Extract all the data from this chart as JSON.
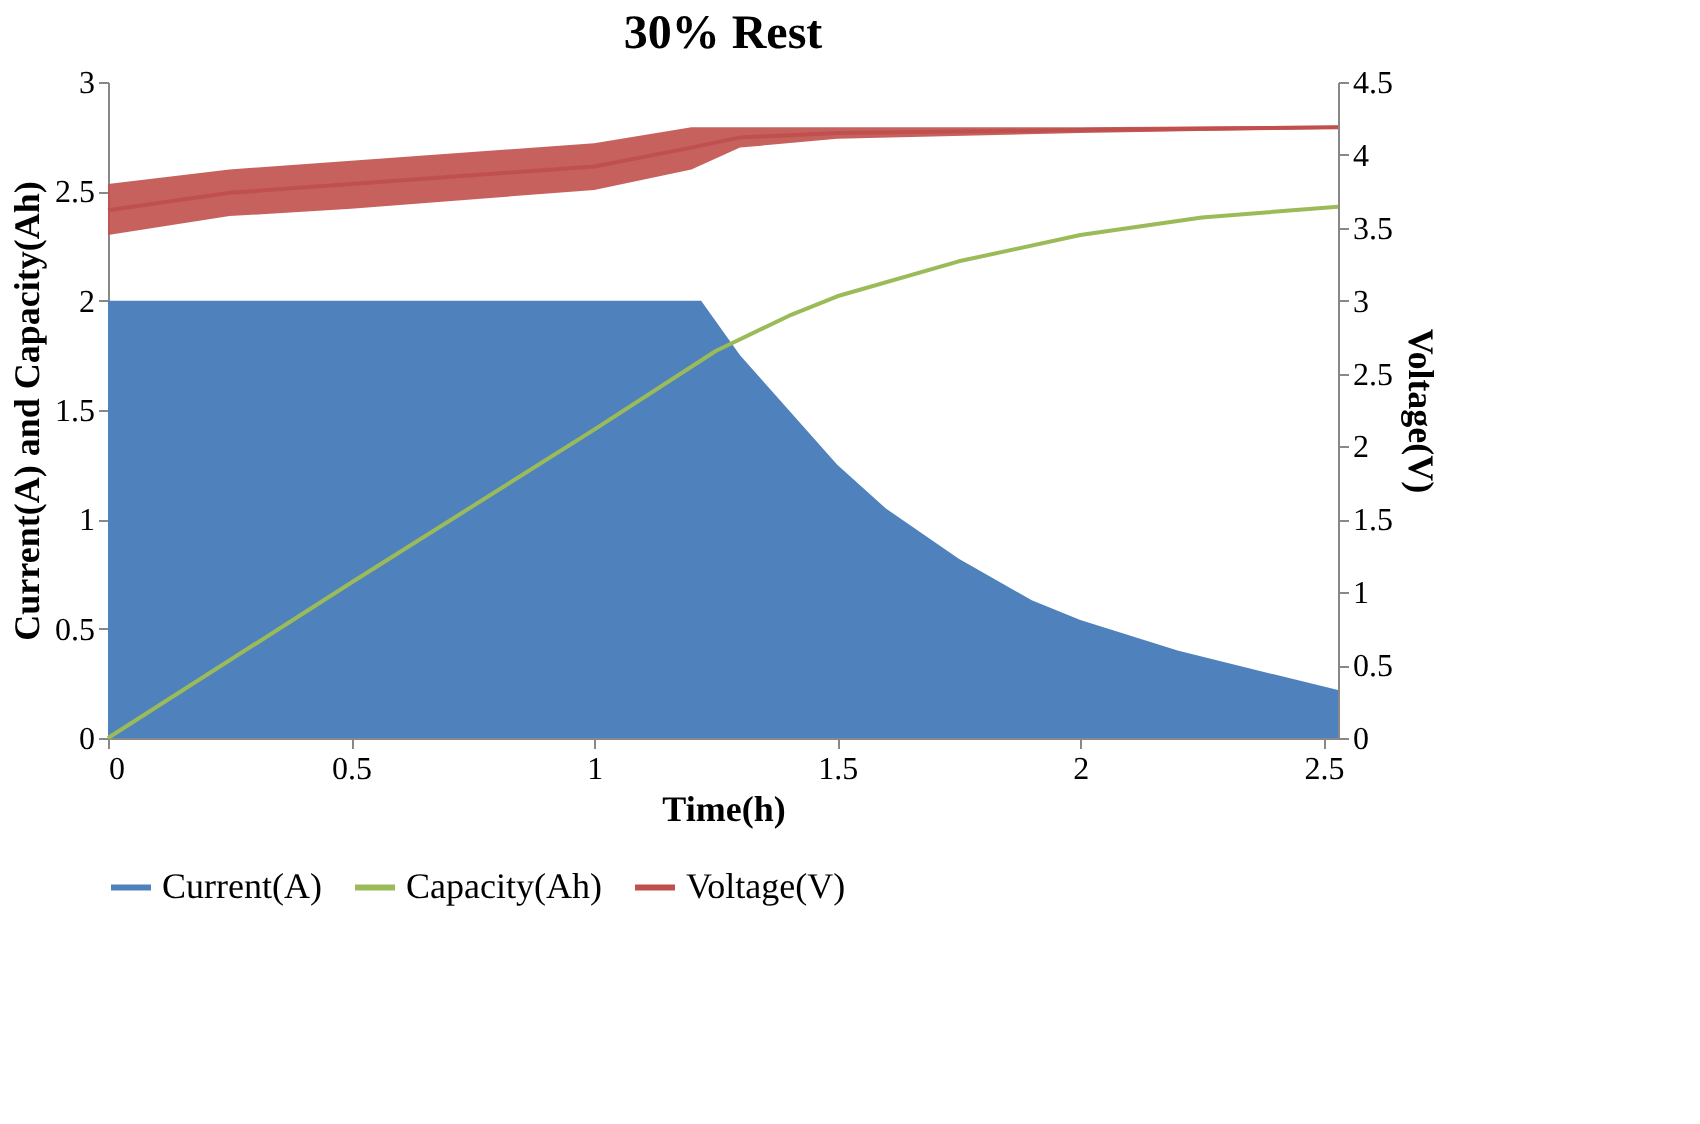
{
  "chart_data": {
    "type": "line",
    "title": "30% Rest",
    "xlabel": "Time(h)",
    "ylabel": "Current(A) and Capacity(Ah)",
    "y2label": "Voltage(V)",
    "xlim": [
      0,
      2.53
    ],
    "xticks": [
      0,
      0.5,
      1,
      1.5,
      2,
      2.5
    ],
    "ylim": [
      0,
      3
    ],
    "yticks": [
      0,
      0.5,
      1,
      1.5,
      2,
      2.5,
      3
    ],
    "y2lim": [
      0,
      4.5
    ],
    "y2ticks": [
      0,
      0.5,
      1,
      1.5,
      2,
      2.5,
      3,
      3.5,
      4,
      4.5
    ],
    "grid": false,
    "legend": "bottom",
    "series": [
      {
        "name": "Current(A)",
        "type": "area",
        "color": "#4f81bd",
        "x": [
          0,
          0.5,
          1,
          1.22,
          1.3,
          1.4,
          1.5,
          1.6,
          1.75,
          1.9,
          2,
          2.2,
          2.4,
          2.53
        ],
        "values": [
          2,
          2,
          2,
          2,
          1.75,
          1.5,
          1.25,
          1.05,
          0.82,
          0.63,
          0.54,
          0.4,
          0.29,
          0.22
        ]
      },
      {
        "name": "Capacity(Ah)",
        "color": "#9bbb59",
        "x": [
          0,
          0.5,
          1,
          1.25,
          1.4,
          1.5,
          1.75,
          2,
          2.25,
          2.53
        ],
        "values": [
          0,
          0.71,
          1.41,
          1.77,
          1.93,
          2.02,
          2.18,
          2.3,
          2.38,
          2.43
        ]
      },
      {
        "name": "Voltage(V)",
        "axis": "y2",
        "color": "#c0504d",
        "x": [
          0,
          0.25,
          0.5,
          1,
          1.2,
          1.3,
          1.5,
          2,
          2.53
        ],
        "values": [
          3.62,
          3.74,
          3.8,
          3.92,
          4.05,
          4.12,
          4.15,
          4.17,
          4.19
        ],
        "lower": [
          3.45,
          3.58,
          3.63,
          3.76,
          3.9,
          4.05,
          4.11,
          4.15,
          4.18
        ],
        "upper": [
          3.8,
          3.9,
          3.96,
          4.08,
          4.19,
          4.19,
          4.19,
          4.19,
          4.2
        ]
      }
    ]
  }
}
